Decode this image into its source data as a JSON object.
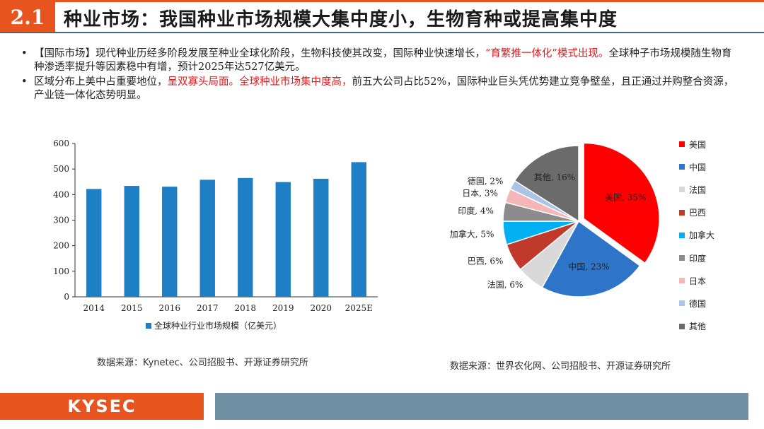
{
  "header": {
    "section": "2.1",
    "title": "种业市场：我国种业市场规模大集中度小，生物育种或提高集中度"
  },
  "bullets": [
    {
      "dot": "•",
      "p1": "【国际市场】现代种业历经多阶段发展至种业全球化阶段，生物科技使其改变，国际种业快速增长，",
      "p2_red": "“育繁推一体化”模式出现。",
      "p3": "全球种子市场规模随生物育种渗透率提升等因素稳中有增，预计2025年达527亿美元。"
    },
    {
      "dot": "•",
      "p1": "区域分布上美中占重要地位，",
      "p2_red": "呈双寡头局面。全球种业市场集中度高，",
      "p3": "前五大公司占比52%，国际种业巨头凭优势建立竞争壁垒，且正通过并购整合资源，产业链一体化态势明显。"
    }
  ],
  "chart_data": [
    {
      "type": "bar",
      "categories": [
        "2014",
        "2015",
        "2016",
        "2017",
        "2018",
        "2019",
        "2020",
        "2025E"
      ],
      "series": [
        {
          "name": "全球种业行业市场规模（亿美元）",
          "values": [
            422,
            434,
            431,
            458,
            465,
            449,
            462,
            527
          ]
        }
      ],
      "ylim": [
        0,
        600
      ],
      "yticks": [
        "0",
        "100",
        "200",
        "300",
        "400",
        "500",
        "600"
      ],
      "grid": false,
      "legend": "bottom",
      "color": "#1f7fc4"
    },
    {
      "type": "pie",
      "slices": [
        {
          "name": "美国",
          "value": 35,
          "label": "美国, 35%",
          "color": "#ff0000"
        },
        {
          "name": "中国",
          "value": 23,
          "label": "中国, 23%",
          "color": "#2e75c9"
        },
        {
          "name": "法国",
          "value": 6,
          "label": "法国, 6%",
          "color": "#d9d9d9"
        },
        {
          "name": "巴西",
          "value": 6,
          "label": "巴西, 6%",
          "color": "#c0392b"
        },
        {
          "name": "加拿大",
          "value": 5,
          "label": "加拿大, 5%",
          "color": "#00b0f0"
        },
        {
          "name": "印度",
          "value": 4,
          "label": "印度, 4%",
          "color": "#8c8c8c"
        },
        {
          "name": "日本",
          "value": 3,
          "label": "日本, 3%",
          "color": "#f4b6b6"
        },
        {
          "name": "德国",
          "value": 2,
          "label": "德国, 2%",
          "color": "#a9c5e8"
        },
        {
          "name": "其他",
          "value": 16,
          "label": "其他, 16%",
          "color": "#6b6b6b"
        }
      ],
      "legend": "right"
    }
  ],
  "sources": {
    "left": "数据来源：Kynetec、公司招股书、开源证券研究所",
    "right": "数据来源：世界农化网、公司招股书、开源证券研究所"
  },
  "footer": {
    "logo": "KYSEC"
  },
  "colors": {
    "accent": "#e8541e",
    "rule": "#3f6a86",
    "footer_bar": "#6f8fa3",
    "highlight": "#e31a1c"
  }
}
